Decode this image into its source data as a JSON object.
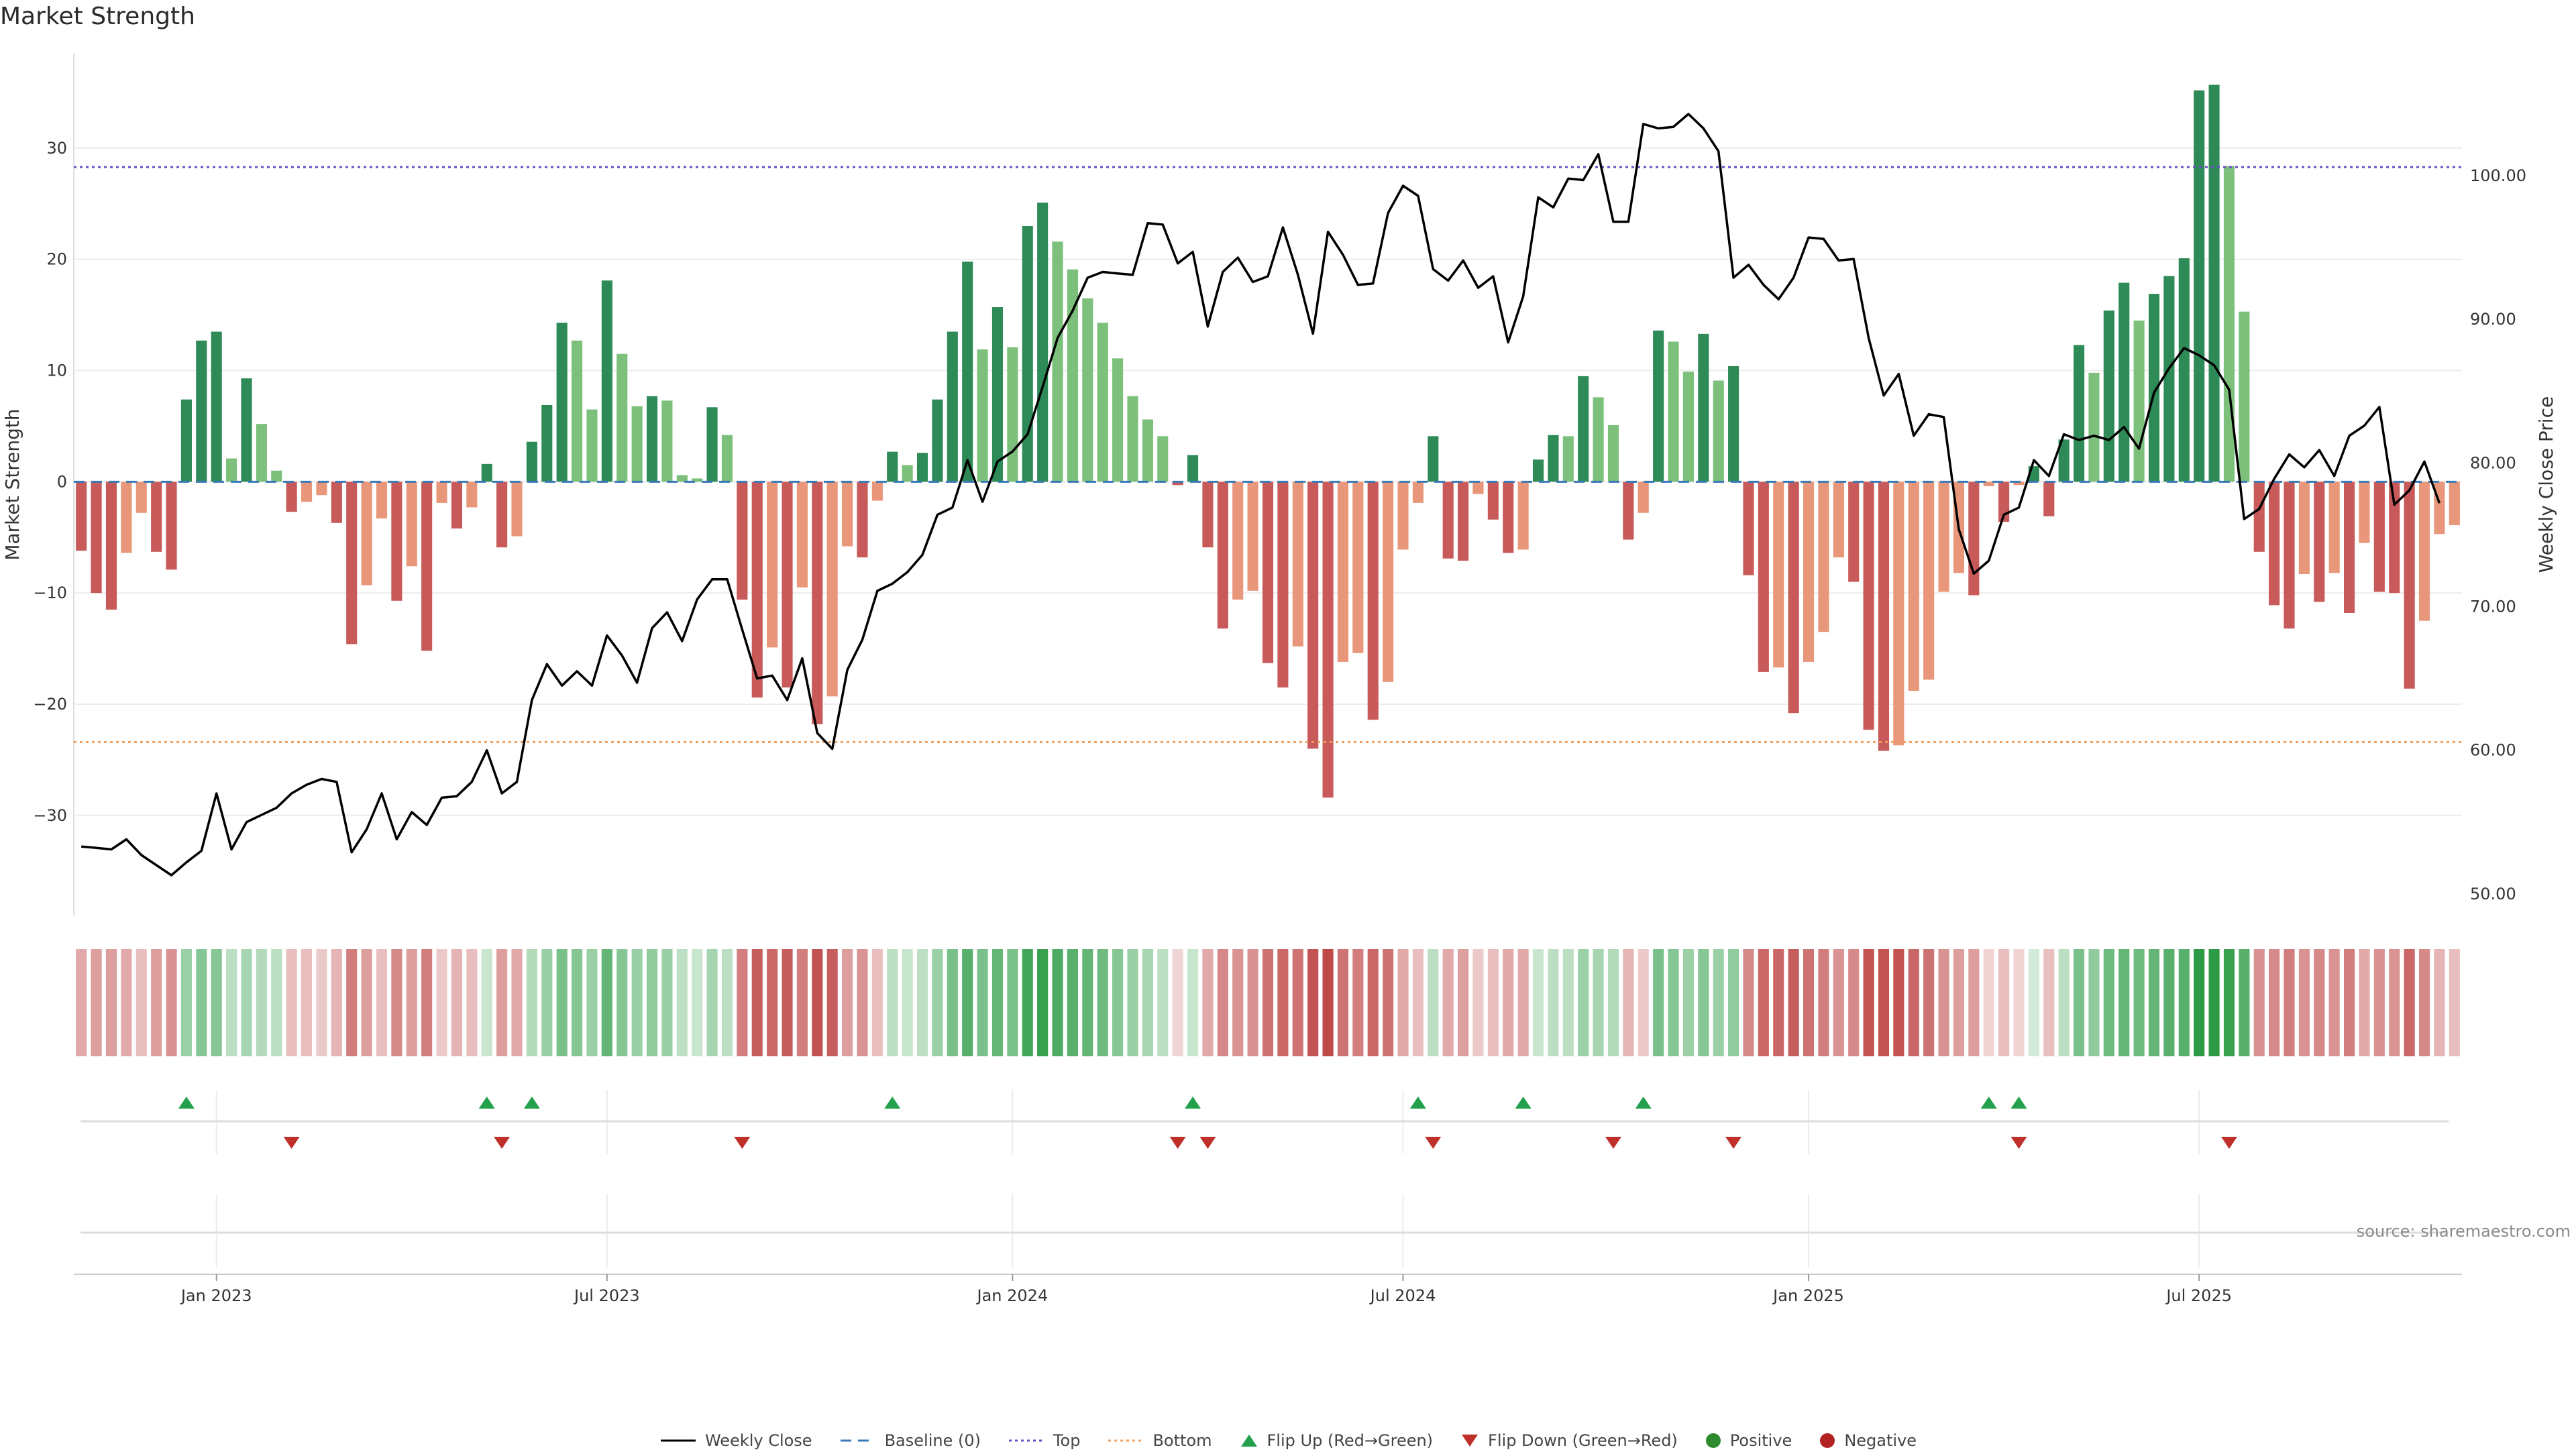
{
  "title": "Market Strength",
  "source": "source: sharemaestro.com",
  "colors": {
    "price": "#000000",
    "top": "#6a4fc4",
    "bottom": "#f0a060",
    "baseline": "#3a7ab8",
    "pos_strong": "#2e8b57",
    "pos_weak": "#7cc07c",
    "neg_strong": "#c85a5a",
    "neg_weak": "#e8977a",
    "flip_up": "#22a04b",
    "flip_down": "#c0302b",
    "positive": "#2e8b2e",
    "negative": "#b22222"
  },
  "legend": [
    {
      "key": "weekly_close",
      "label": "Weekly Close"
    },
    {
      "key": "baseline",
      "label": "Baseline (0)"
    },
    {
      "key": "top",
      "label": "Top"
    },
    {
      "key": "bottom",
      "label": "Bottom"
    },
    {
      "key": "flip_up",
      "label": "Flip Up (Red→Green)"
    },
    {
      "key": "flip_down",
      "label": "Flip Down (Green→Red)"
    },
    {
      "key": "positive",
      "label": "Positive"
    },
    {
      "key": "negative",
      "label": "Negative"
    }
  ],
  "chart_data": {
    "type": "bar",
    "title": "Market Strength",
    "ylabel": "Market Strength",
    "y2label": "Weekly Close Price",
    "ylim": [
      -39,
      38.5
    ],
    "y2lim": [
      48.5,
      108.5
    ],
    "yticks": [
      30,
      20,
      10,
      0,
      -10,
      -20,
      -30
    ],
    "ytick_labels": [
      "30",
      "20",
      "10",
      "0",
      "−10",
      "−20",
      "−30"
    ],
    "y2ticks": [
      100,
      90,
      80,
      70,
      60,
      50
    ],
    "y2tick_labels": [
      "100.00",
      "90.00",
      "80.00",
      "70.00",
      "60.00",
      "50.00"
    ],
    "xticks": [
      {
        "index": 9,
        "label": "Jan 2023"
      },
      {
        "index": 35,
        "label": "Jul 2023"
      },
      {
        "index": 62,
        "label": "Jan 2024"
      },
      {
        "index": 88,
        "label": "Jul 2024"
      },
      {
        "index": 115,
        "label": "Jan 2025"
      },
      {
        "index": 141,
        "label": "Jul 2025"
      }
    ],
    "top_level": 28.3,
    "bottom_level": -23.4,
    "strength": [
      -6.2,
      -10,
      -11.5,
      -6.4,
      -2.8,
      -6.3,
      -7.9,
      7.4,
      12.7,
      13.5,
      2.1,
      9.3,
      5.2,
      1,
      -2.7,
      -1.8,
      -1.2,
      -3.7,
      -14.6,
      -9.3,
      -3.3,
      -10.7,
      -7.6,
      -15.2,
      -1.9,
      -4.2,
      -2.3,
      1.6,
      -5.9,
      -4.9,
      3.6,
      6.9,
      14.3,
      12.7,
      6.5,
      18.1,
      11.5,
      6.8,
      7.7,
      7.3,
      0.6,
      0.3,
      6.7,
      4.2,
      -10.6,
      -19.4,
      -14.9,
      -18.5,
      -9.5,
      -21.8,
      -19.3,
      -5.8,
      -6.8,
      -1.7,
      2.7,
      1.5,
      2.6,
      7.4,
      13.5,
      19.8,
      11.9,
      15.7,
      12.1,
      23,
      25.1,
      21.6,
      19.1,
      16.5,
      14.3,
      11.1,
      7.7,
      5.6,
      4.1,
      -0.3,
      2.4,
      -5.9,
      -13.2,
      -10.6,
      -9.8,
      -16.3,
      -18.5,
      -14.8,
      -24,
      -28.4,
      -16.2,
      -15.4,
      -21.4,
      -18,
      -6.1,
      -1.9,
      4.1,
      -6.9,
      -7.1,
      -1.1,
      -3.4,
      -6.4,
      -6.1,
      2,
      4.2,
      4.1,
      9.5,
      7.6,
      5.1,
      -5.2,
      -2.8,
      13.6,
      12.6,
      9.9,
      13.3,
      9.1,
      10.4,
      -8.4,
      -17.1,
      -16.7,
      -20.8,
      -16.2,
      -13.5,
      -6.8,
      -9,
      -22.3,
      -24.2,
      -23.7,
      -18.8,
      -17.8,
      -9.9,
      -8.2,
      -10.2,
      -0.4,
      -3.6,
      -0.3,
      1.4,
      -3.1,
      3.8,
      12.3,
      9.8,
      15.4,
      17.9,
      14.5,
      16.9,
      18.5,
      20.1,
      35.2,
      35.7,
      28.4,
      15.3,
      -6.3,
      -11.1,
      -13.2,
      -8.3,
      -10.8,
      -8.2,
      -11.8,
      -5.5,
      -9.9,
      -10,
      -18.6,
      -12.5,
      -4.7,
      -3.9
    ],
    "close": [
      53.3,
      53.2,
      53.1,
      53.8,
      52.7,
      52,
      51.3,
      52.2,
      53,
      57,
      53.1,
      55,
      55.5,
      56,
      57,
      57.6,
      58,
      57.8,
      52.9,
      54.5,
      57,
      53.8,
      55.7,
      54.8,
      56.7,
      56.8,
      57.8,
      60,
      57,
      57.8,
      63.5,
      66,
      64.5,
      65.5,
      64.5,
      68,
      66.6,
      64.7,
      68.5,
      69.6,
      67.6,
      70.5,
      71.9,
      71.9,
      68.4,
      65,
      65.2,
      63.5,
      66.4,
      61.2,
      60.1,
      65.6,
      67.7,
      71.1,
      71.6,
      72.4,
      73.6,
      76.4,
      76.9,
      80.2,
      77.3,
      80.1,
      80.8,
      82,
      85.3,
      88.7,
      90.6,
      92.9,
      93.3,
      93.2,
      93.1,
      96.7,
      96.6,
      93.9,
      94.7,
      89.5,
      93.3,
      94.3,
      92.6,
      93,
      96.4,
      93.1,
      89,
      96.1,
      94.5,
      92.4,
      92.5,
      97.4,
      99.3,
      98.6,
      93.5,
      92.7,
      94.1,
      92.2,
      93,
      88.4,
      91.6,
      98.5,
      97.8,
      99.8,
      99.7,
      101.5,
      96.8,
      96.8,
      103.6,
      103.3,
      103.4,
      104.3,
      103.3,
      101.7,
      92.9,
      93.8,
      92.4,
      91.4,
      92.9,
      95.7,
      95.6,
      94.1,
      94.2,
      88.7,
      84.7,
      86.2,
      81.9,
      83.4,
      83.2,
      75.4,
      72.3,
      73.2,
      76.4,
      76.9,
      80.2,
      79.1,
      82,
      81.6,
      81.9,
      81.6,
      82.5,
      81,
      84.9,
      86.6,
      88,
      87.5,
      86.8,
      85.1,
      76.1,
      76.8,
      78.9,
      80.6,
      79.7,
      80.9,
      79.1,
      81.9,
      82.6,
      83.9,
      77.1,
      78.1,
      80.1,
      77.2
    ],
    "heat": [
      -0.4,
      -0.45,
      -0.45,
      -0.4,
      -0.3,
      -0.45,
      -0.5,
      0.45,
      0.55,
      0.55,
      0.3,
      0.4,
      0.35,
      0.3,
      -0.3,
      -0.3,
      -0.25,
      -0.35,
      -0.6,
      -0.45,
      -0.3,
      -0.55,
      -0.45,
      -0.6,
      -0.25,
      -0.35,
      -0.3,
      0.25,
      -0.45,
      -0.4,
      0.35,
      0.45,
      0.6,
      0.55,
      0.45,
      0.7,
      0.55,
      0.45,
      0.5,
      0.45,
      0.3,
      0.25,
      0.4,
      0.3,
      -0.6,
      -0.75,
      -0.7,
      -0.75,
      -0.6,
      -0.8,
      -0.75,
      -0.45,
      -0.5,
      -0.3,
      0.3,
      0.25,
      0.3,
      0.45,
      0.6,
      0.75,
      0.6,
      0.7,
      0.6,
      0.85,
      0.9,
      0.8,
      0.75,
      0.7,
      0.65,
      0.55,
      0.45,
      0.4,
      0.3,
      -0.2,
      0.25,
      -0.4,
      -0.55,
      -0.5,
      -0.5,
      -0.65,
      -0.7,
      -0.65,
      -0.8,
      -0.85,
      -0.65,
      -0.6,
      -0.7,
      -0.65,
      -0.4,
      -0.3,
      0.3,
      -0.4,
      -0.45,
      -0.25,
      -0.3,
      -0.4,
      -0.4,
      0.25,
      0.3,
      0.3,
      0.45,
      0.4,
      0.35,
      -0.35,
      -0.25,
      0.6,
      0.55,
      0.45,
      0.55,
      0.45,
      0.5,
      -0.55,
      -0.7,
      -0.7,
      -0.75,
      -0.65,
      -0.6,
      -0.5,
      -0.55,
      -0.8,
      -0.8,
      -0.8,
      -0.7,
      -0.65,
      -0.5,
      -0.45,
      -0.45,
      -0.2,
      -0.3,
      -0.2,
      0.2,
      -0.3,
      0.3,
      0.6,
      0.5,
      0.65,
      0.7,
      0.65,
      0.7,
      0.75,
      0.75,
      0.95,
      0.95,
      0.9,
      0.75,
      -0.5,
      -0.55,
      -0.6,
      -0.5,
      -0.55,
      -0.5,
      -0.6,
      -0.4,
      -0.5,
      -0.5,
      -0.7,
      -0.55,
      -0.35,
      -0.3
    ],
    "flip_up": [
      7,
      27,
      30,
      54,
      74,
      89,
      96,
      104,
      127,
      129
    ],
    "flip_down": [
      14,
      28,
      44,
      73,
      75,
      90,
      102,
      110,
      129,
      143
    ]
  }
}
